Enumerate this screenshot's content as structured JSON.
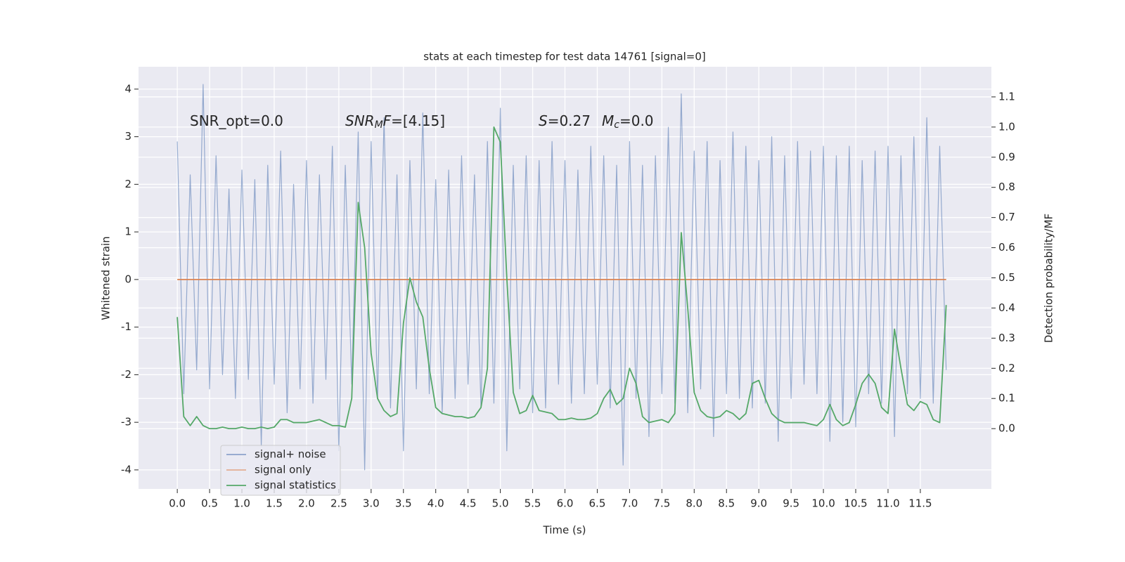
{
  "chart_data": {
    "type": "line",
    "title": "stats at each timestep for test data 14761 [signal=0]",
    "x_label": "Time (s)",
    "y_label": "Whitened strain",
    "y2_label": "Detection probability/MF",
    "annotations": [
      [
        "SNR_opt=0.0"
      ],
      [
        "SNR",
        "M",
        "F",
        "=[4.15]"
      ],
      [
        "S",
        "=0.27",
        "M",
        "c",
        "=0.0"
      ]
    ],
    "x": [
      0.0,
      0.1,
      0.2,
      0.3,
      0.4,
      0.5,
      0.6,
      0.7,
      0.8,
      0.9,
      1.0,
      1.1,
      1.2,
      1.3,
      1.4,
      1.5,
      1.6,
      1.7,
      1.8,
      1.9,
      2.0,
      2.1,
      2.2,
      2.3,
      2.4,
      2.5,
      2.6,
      2.7,
      2.8,
      2.9,
      3.0,
      3.1,
      3.2,
      3.3,
      3.4,
      3.5,
      3.6,
      3.7,
      3.8,
      3.9,
      4.0,
      4.1,
      4.2,
      4.3,
      4.4,
      4.5,
      4.6,
      4.7,
      4.8,
      4.9,
      5.0,
      5.1,
      5.2,
      5.3,
      5.4,
      5.5,
      5.6,
      5.7,
      5.8,
      5.9,
      6.0,
      6.1,
      6.2,
      6.3,
      6.4,
      6.5,
      6.6,
      6.7,
      6.8,
      6.9,
      7.0,
      7.1,
      7.2,
      7.3,
      7.4,
      7.5,
      7.6,
      7.7,
      7.8,
      7.9,
      8.0,
      8.1,
      8.2,
      8.3,
      8.4,
      8.5,
      8.6,
      8.7,
      8.8,
      8.9,
      9.0,
      9.1,
      9.2,
      9.3,
      9.4,
      9.5,
      9.6,
      9.7,
      9.8,
      9.9,
      10.0,
      10.1,
      10.2,
      10.3,
      10.4,
      10.5,
      10.6,
      10.7,
      10.8,
      10.9,
      11.0,
      11.1,
      11.2,
      11.3,
      11.4,
      11.5,
      11.6,
      11.7,
      11.8,
      11.9
    ],
    "series": [
      {
        "name": "signal+ noise",
        "color": "#4c72b0",
        "axis": "y",
        "values": [
          2.9,
          -2.4,
          2.2,
          -1.9,
          4.1,
          -2.3,
          2.6,
          -2.0,
          1.9,
          -2.5,
          2.3,
          -2.1,
          2.1,
          -3.5,
          2.4,
          -2.2,
          2.7,
          -2.8,
          2.0,
          -2.3,
          2.5,
          -2.6,
          2.2,
          -2.1,
          2.8,
          -3.6,
          2.4,
          -2.2,
          3.1,
          -4.0,
          2.9,
          -2.5,
          3.4,
          -2.7,
          2.2,
          -3.6,
          2.5,
          -2.3,
          3.5,
          -2.4,
          2.1,
          -2.8,
          2.3,
          -2.5,
          2.6,
          -2.2,
          2.2,
          -2.7,
          2.9,
          -2.6,
          3.6,
          -3.6,
          2.4,
          -2.3,
          2.6,
          -2.8,
          2.5,
          -2.7,
          2.9,
          -2.2,
          2.5,
          -2.6,
          2.3,
          -2.4,
          2.8,
          -2.2,
          2.6,
          -2.7,
          2.4,
          -3.9,
          2.9,
          -2.5,
          2.4,
          -3.3,
          2.6,
          -2.4,
          3.2,
          -2.6,
          3.9,
          -2.8,
          2.7,
          -2.3,
          2.9,
          -3.3,
          2.5,
          -2.4,
          3.1,
          -2.5,
          2.8,
          -2.7,
          2.5,
          -2.6,
          3.0,
          -3.4,
          2.6,
          -2.5,
          2.9,
          -2.2,
          2.7,
          -2.4,
          2.8,
          -3.4,
          2.6,
          -3.0,
          2.8,
          -3.1,
          2.5,
          -2.4,
          2.7,
          -2.6,
          2.8,
          -3.3,
          2.6,
          -2.4,
          3.0,
          -2.5,
          3.4,
          -2.6,
          2.8,
          -1.9
        ]
      },
      {
        "name": "signal only",
        "color": "#dd8452",
        "axis": "y",
        "values": [
          0,
          0,
          0,
          0,
          0,
          0,
          0,
          0,
          0,
          0,
          0,
          0,
          0,
          0,
          0,
          0,
          0,
          0,
          0,
          0,
          0,
          0,
          0,
          0,
          0,
          0,
          0,
          0,
          0,
          0,
          0,
          0,
          0,
          0,
          0,
          0,
          0,
          0,
          0,
          0,
          0,
          0,
          0,
          0,
          0,
          0,
          0,
          0,
          0,
          0,
          0,
          0,
          0,
          0,
          0,
          0,
          0,
          0,
          0,
          0,
          0,
          0,
          0,
          0,
          0,
          0,
          0,
          0,
          0,
          0,
          0,
          0,
          0,
          0,
          0,
          0,
          0,
          0,
          0,
          0,
          0,
          0,
          0,
          0,
          0,
          0,
          0,
          0,
          0,
          0,
          0,
          0,
          0,
          0,
          0,
          0,
          0,
          0,
          0,
          0,
          0,
          0,
          0,
          0,
          0,
          0,
          0,
          0,
          0,
          0,
          0,
          0,
          0,
          0,
          0,
          0,
          0,
          0,
          0,
          0
        ]
      },
      {
        "name": "signal statistics",
        "color": "#55a868",
        "axis": "y2",
        "values": [
          0.37,
          0.04,
          0.01,
          0.04,
          0.01,
          0,
          0,
          0.005,
          0,
          0,
          0.005,
          0,
          0,
          0.005,
          0,
          0.005,
          0.03,
          0.03,
          0.02,
          0.02,
          0.02,
          0.025,
          0.03,
          0.02,
          0.01,
          0.01,
          0.005,
          0.1,
          0.75,
          0.6,
          0.25,
          0.1,
          0.06,
          0.04,
          0.05,
          0.35,
          0.5,
          0.42,
          0.37,
          0.2,
          0.07,
          0.05,
          0.045,
          0.04,
          0.04,
          0.035,
          0.04,
          0.07,
          0.2,
          1.0,
          0.95,
          0.5,
          0.12,
          0.05,
          0.06,
          0.11,
          0.06,
          0.055,
          0.05,
          0.03,
          0.03,
          0.035,
          0.03,
          0.03,
          0.035,
          0.05,
          0.1,
          0.13,
          0.08,
          0.1,
          0.2,
          0.15,
          0.04,
          0.02,
          0.025,
          0.03,
          0.02,
          0.05,
          0.65,
          0.4,
          0.12,
          0.06,
          0.04,
          0.035,
          0.04,
          0.06,
          0.05,
          0.03,
          0.05,
          0.15,
          0.16,
          0.1,
          0.05,
          0.03,
          0.02,
          0.02,
          0.02,
          0.02,
          0.015,
          0.01,
          0.03,
          0.08,
          0.03,
          0.01,
          0.02,
          0.08,
          0.15,
          0.18,
          0.15,
          0.07,
          0.05,
          0.33,
          0.2,
          0.08,
          0.06,
          0.09,
          0.08,
          0.03,
          0.02,
          0.41
        ]
      }
    ],
    "xlim": [
      -0.6,
      12.6
    ],
    "xticks": [
      {
        "value": 0,
        "label": "0.0"
      },
      0.5,
      {
        "value": 1,
        "label": "1.0"
      },
      1.5,
      {
        "value": 2,
        "label": "2.0"
      },
      2.5,
      {
        "value": 3,
        "label": "3.0"
      },
      3.5,
      {
        "value": 4,
        "label": "4.0"
      },
      4.5,
      {
        "value": 5,
        "label": "5.0"
      },
      5.5,
      {
        "value": 6,
        "label": "6.0"
      },
      6.5,
      {
        "value": 7,
        "label": "7.0"
      },
      7.5,
      {
        "value": 8,
        "label": "8.0"
      },
      8.5,
      {
        "value": 9,
        "label": "9.0"
      },
      9.5,
      {
        "value": 10,
        "label": "10.0"
      },
      10.5,
      {
        "value": 11,
        "label": "11.0"
      },
      11.5
    ],
    "ylim": [
      -4.4,
      4.47
    ],
    "yticks": [
      -4,
      -3,
      -2,
      -1,
      0,
      1,
      2,
      3,
      4
    ],
    "y2lim": [
      -0.2,
      1.2
    ],
    "y2ticks": [
      {
        "value": 0,
        "label": "0.0"
      },
      0.1,
      0.2,
      0.3,
      0.4,
      0.5,
      0.6,
      0.7,
      0.8,
      0.9,
      {
        "value": 1,
        "label": "1.0"
      },
      1.1
    ],
    "grid": true,
    "legend": "lower left",
    "background": "#eaeaf2"
  }
}
